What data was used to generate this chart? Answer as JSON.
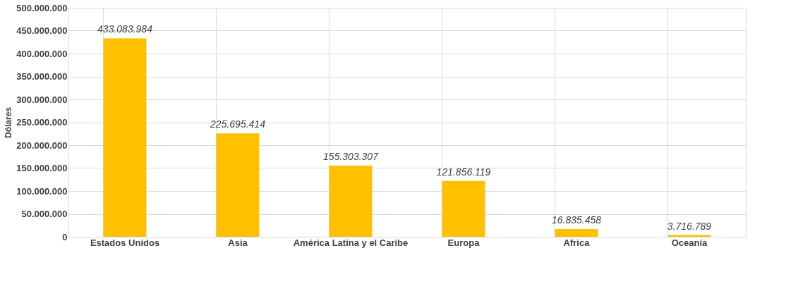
{
  "chart_data": {
    "type": "bar",
    "ylabel": "Dólares",
    "categories": [
      "Estados Unidos",
      "Asia",
      "América Latina y el Caribe",
      "Europa",
      "Africa",
      "Oceanía"
    ],
    "values": [
      433083984,
      225695414,
      155303307,
      121856119,
      16835458,
      3716789
    ],
    "value_labels": [
      "433.083.984",
      "225.695.414",
      "155.303.307",
      "121.856.119",
      "16.835.458",
      "3.716.789"
    ],
    "color": "#ffc000",
    "ylim": [
      0,
      500000000
    ],
    "yticks": [
      {
        "value": 0,
        "label": "0"
      },
      {
        "value": 50000000,
        "label": "50.000.000"
      },
      {
        "value": 100000000,
        "label": "100.000.000"
      },
      {
        "value": 150000000,
        "label": "150.000.000"
      },
      {
        "value": 200000000,
        "label": "200.000.000"
      },
      {
        "value": 250000000,
        "label": "250.000.000"
      },
      {
        "value": 300000000,
        "label": "300.000.000"
      },
      {
        "value": 350000000,
        "label": "350.000.000"
      },
      {
        "value": 400000000,
        "label": "400.000.000"
      },
      {
        "value": 450000000,
        "label": "450.000.000"
      },
      {
        "value": 500000000,
        "label": "500.000.000"
      }
    ],
    "grid": true
  }
}
